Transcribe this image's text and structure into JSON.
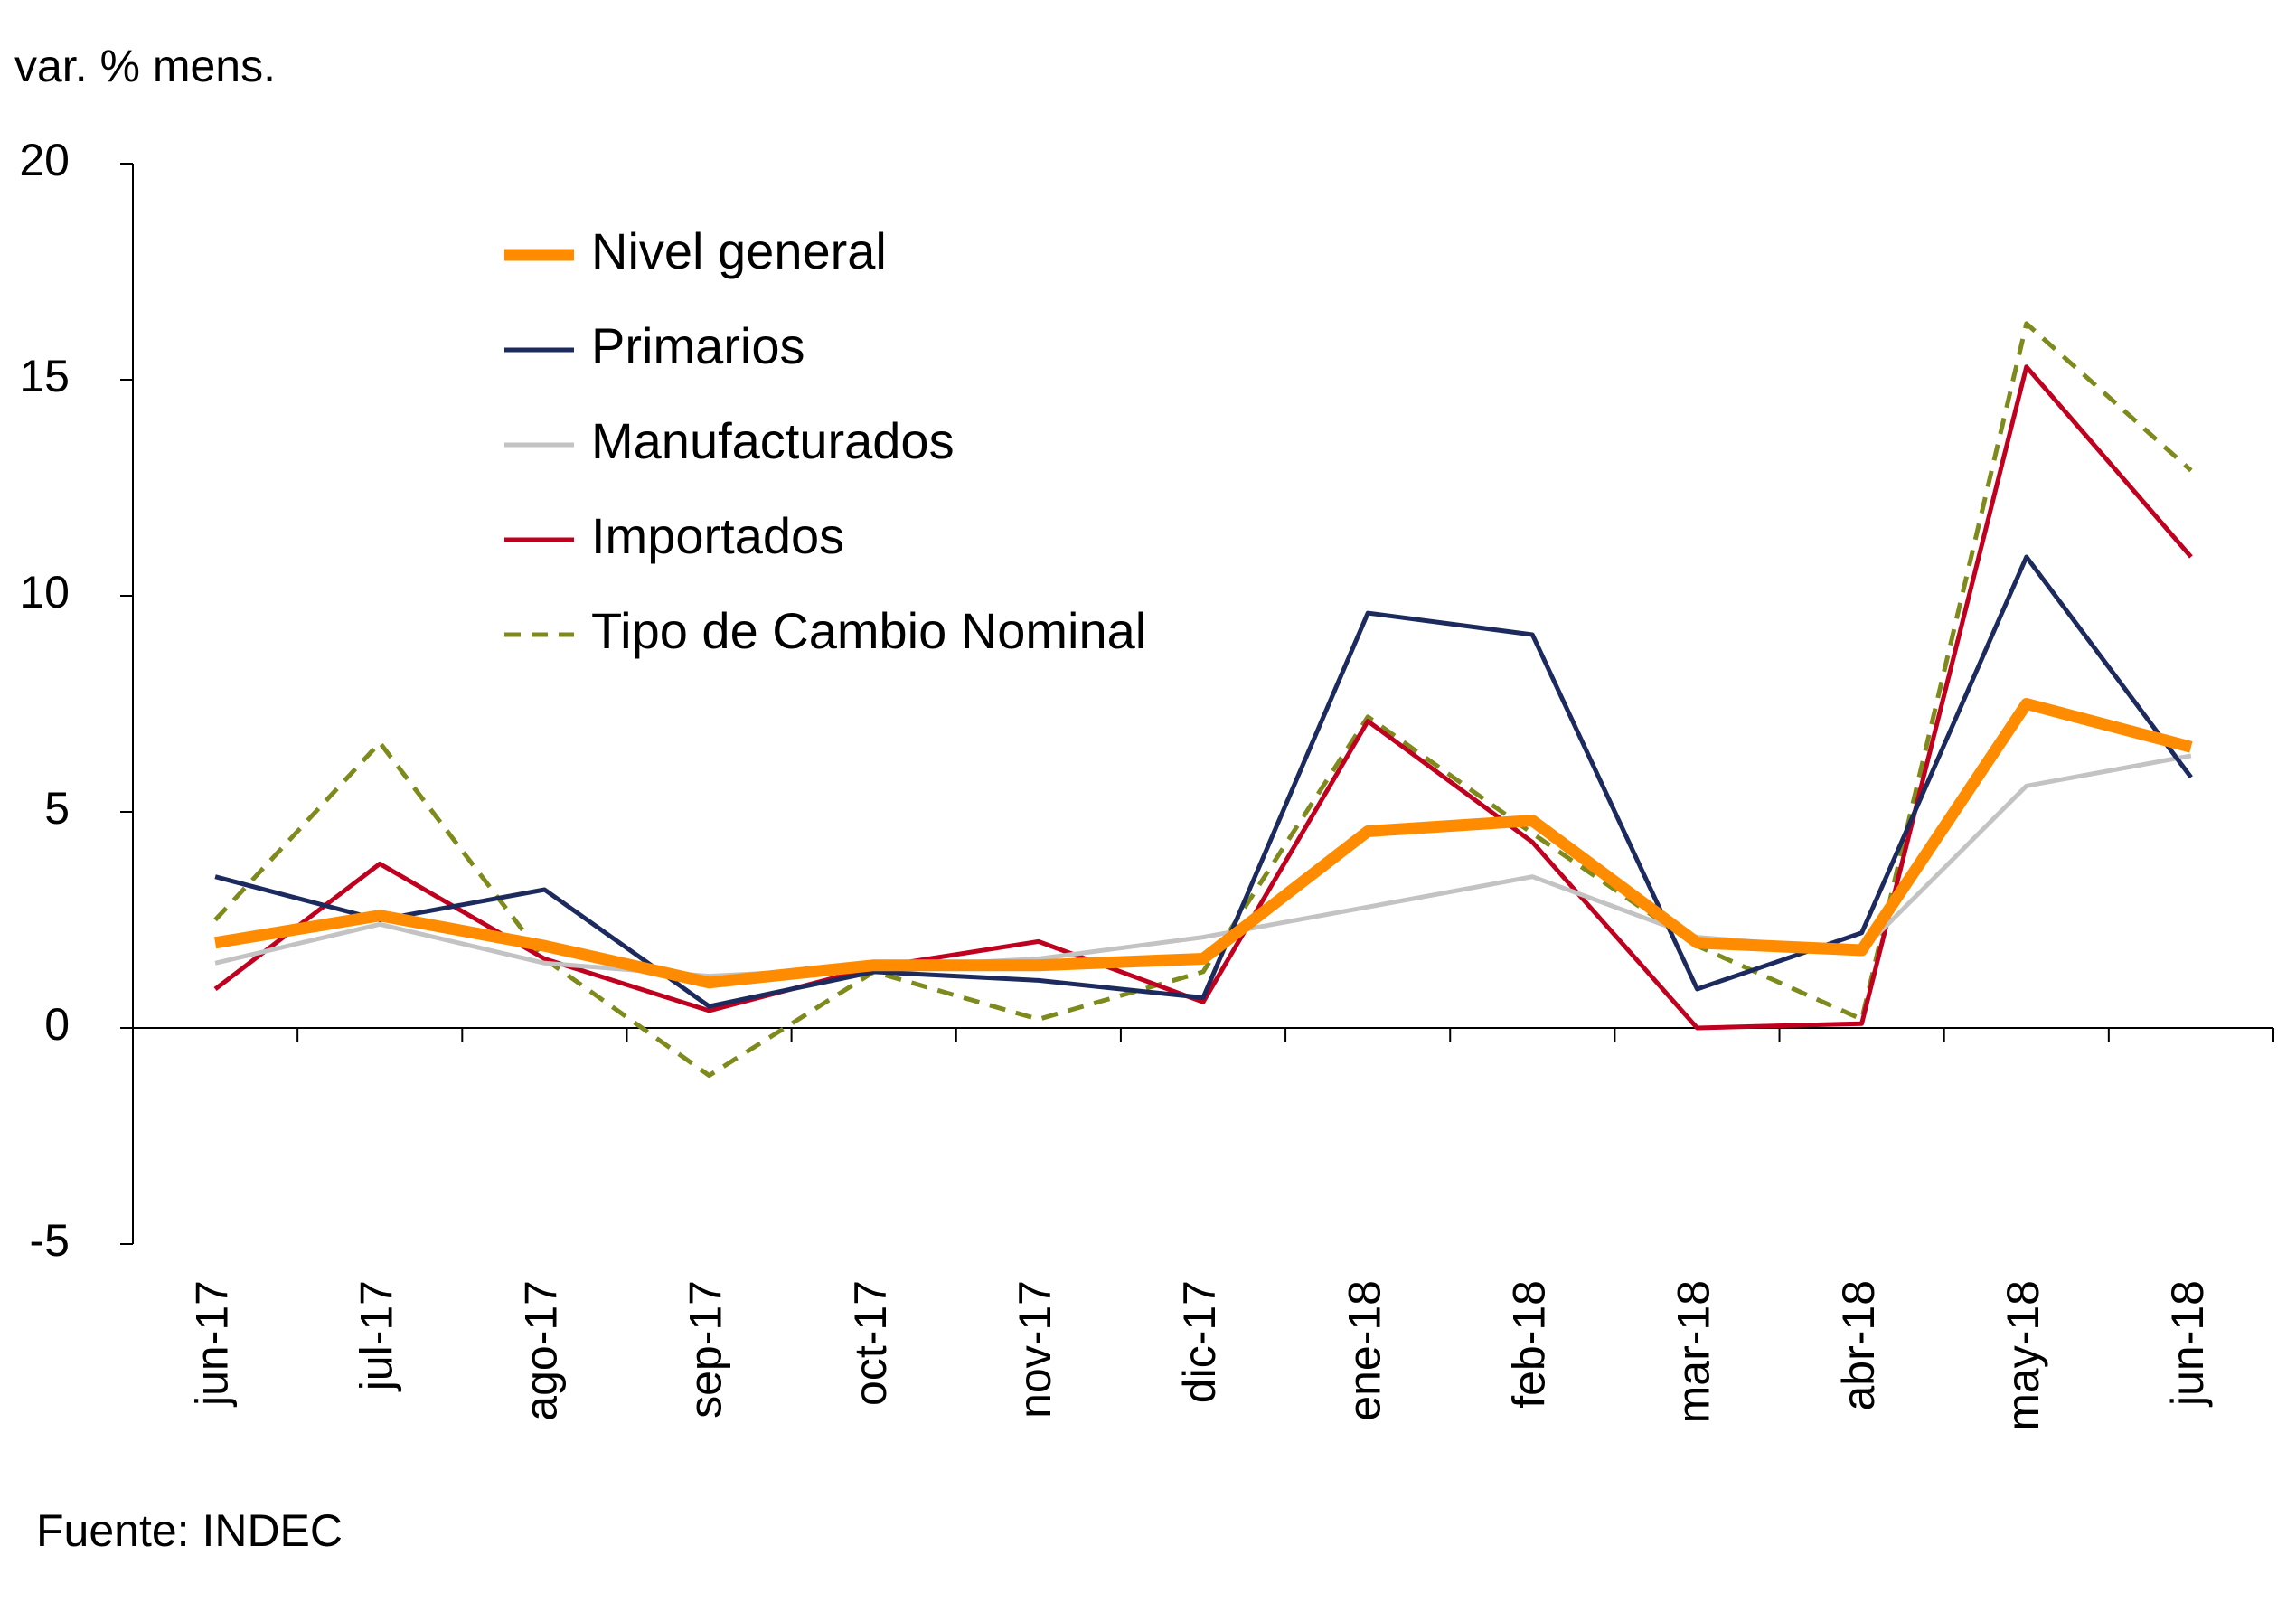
{
  "chart_data": {
    "type": "line",
    "y_label": "var. % mens.",
    "source": "Fuente:  INDEC",
    "categories": [
      "jun-17",
      "jul-17",
      "ago-17",
      "sep-17",
      "oct-17",
      "nov-17",
      "dic-17",
      "ene-18",
      "feb-18",
      "mar-18",
      "abr-18",
      "may-18",
      "jun-18"
    ],
    "series": [
      {
        "name": "Nivel general",
        "color": "#ff8c00",
        "width": 13,
        "dash": false,
        "values": [
          1.97,
          2.6,
          1.9,
          1.05,
          1.45,
          1.45,
          1.6,
          4.55,
          4.8,
          1.97,
          1.8,
          7.5,
          6.5
        ]
      },
      {
        "name": "Primarios",
        "color": "#1c2a5e",
        "width": 5,
        "dash": false,
        "values": [
          3.5,
          2.5,
          3.2,
          0.5,
          1.3,
          1.1,
          0.7,
          9.6,
          9.1,
          0.9,
          2.2,
          10.9,
          5.8
        ]
      },
      {
        "name": "Manufacturados",
        "color": "#c3c3c3",
        "width": 5,
        "dash": false,
        "values": [
          1.5,
          2.4,
          1.5,
          1.2,
          1.4,
          1.6,
          2.1,
          2.8,
          3.5,
          2.1,
          1.8,
          5.6,
          6.3
        ]
      },
      {
        "name": "Importados",
        "color": "#c0001f",
        "width": 5,
        "dash": false,
        "values": [
          0.9,
          3.8,
          1.6,
          0.4,
          1.4,
          2.0,
          0.6,
          7.1,
          4.3,
          0.0,
          0.1,
          15.3,
          10.9
        ]
      },
      {
        "name": "Tipo de Cambio Nominal",
        "color": "#7f8a1c",
        "width": 5,
        "dash": true,
        "values": [
          2.5,
          6.6,
          1.6,
          -1.1,
          1.3,
          0.2,
          1.3,
          7.2,
          4.5,
          1.9,
          0.2,
          16.3,
          12.9
        ]
      }
    ],
    "ylim": [
      -5,
      20
    ],
    "yticks": [
      -5,
      0,
      5,
      10,
      15,
      20
    ],
    "grid": false,
    "legend": "upper left"
  }
}
